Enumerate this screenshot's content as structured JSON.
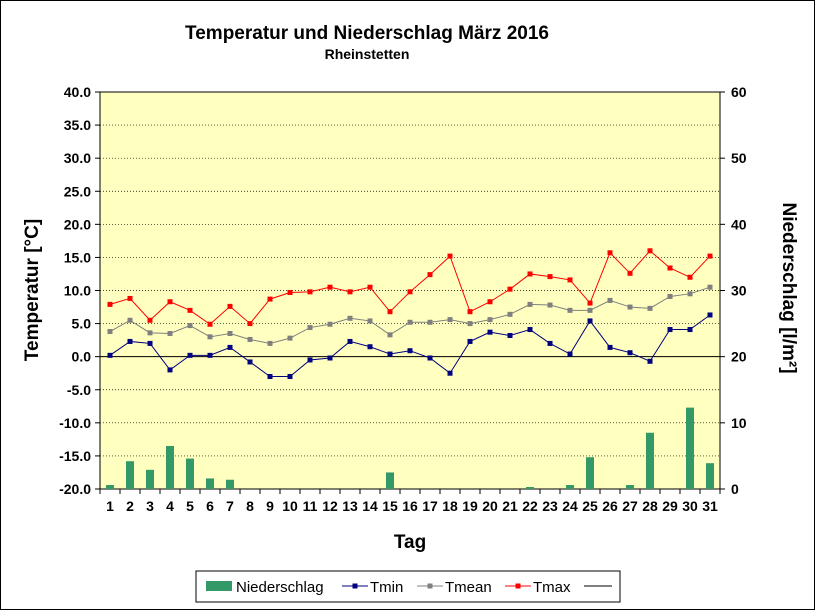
{
  "chart_data": {
    "type": "bar-line-combo",
    "title": "Temperatur und Niederschlag  März 2016",
    "subtitle": "Rheinstetten",
    "xlabel": "Tag",
    "ylabel_left": "Temperatur [°C]",
    "ylabel_right": "Niederschlag [l/m²]",
    "ylim_left": [
      -20,
      40
    ],
    "ylim_right": [
      0,
      60
    ],
    "yticks_left": [
      "40.0",
      "35.0",
      "30.0",
      "25.0",
      "20.0",
      "15.0",
      "10.0",
      "5.0",
      "0.0",
      "-5.0",
      "-10.0",
      "-15.0",
      "-20.0"
    ],
    "yticks_right": [
      "60",
      "50",
      "40",
      "30",
      "20",
      "10",
      "0"
    ],
    "categories": [
      "1",
      "2",
      "3",
      "4",
      "5",
      "6",
      "7",
      "8",
      "9",
      "10",
      "11",
      "12",
      "13",
      "14",
      "15",
      "16",
      "17",
      "18",
      "19",
      "20",
      "21",
      "22",
      "23",
      "24",
      "25",
      "26",
      "27",
      "28",
      "29",
      "30",
      "31"
    ],
    "grid": "horizontal",
    "legend": "bottom",
    "colors": {
      "plot_bg": "#ffffc0",
      "bar": "#339966",
      "tmin": "#000080",
      "tmean": "#808080",
      "tmax": "#ff0000",
      "zero_line": "#000000"
    },
    "bars": {
      "name": "Niederschlag",
      "axis": "right",
      "values": [
        0.6,
        4.2,
        2.9,
        6.5,
        4.6,
        1.6,
        1.4,
        0,
        0,
        0,
        0,
        0,
        0,
        0,
        2.5,
        0,
        0,
        0,
        0,
        0,
        0,
        0.3,
        0,
        0.6,
        4.8,
        0,
        0.6,
        8.5,
        0,
        12.3,
        3.9
      ]
    },
    "series": [
      {
        "name": "Tmin",
        "axis": "left",
        "values": [
          0.2,
          2.3,
          2.0,
          -2.0,
          0.2,
          0.2,
          1.4,
          -0.8,
          -3.0,
          -3.0,
          -0.5,
          -0.2,
          2.3,
          1.5,
          0.4,
          0.9,
          -0.2,
          -2.5,
          2.3,
          3.7,
          3.2,
          4.1,
          2.0,
          0.4,
          5.4,
          1.4,
          0.6,
          -0.7,
          4.1,
          4.1,
          6.3
        ]
      },
      {
        "name": "Tmean",
        "axis": "left",
        "values": [
          3.8,
          5.5,
          3.6,
          3.5,
          4.7,
          3.0,
          3.5,
          2.6,
          2.0,
          2.8,
          4.4,
          4.9,
          5.8,
          5.4,
          3.3,
          5.2,
          5.2,
          5.6,
          5.0,
          5.6,
          6.4,
          7.9,
          7.8,
          7.0,
          7.0,
          8.5,
          7.5,
          7.3,
          9.1,
          9.5,
          10.5
        ]
      },
      {
        "name": "Tmax",
        "axis": "left",
        "values": [
          7.9,
          8.8,
          5.5,
          8.3,
          7.0,
          4.9,
          7.6,
          5.0,
          8.7,
          9.7,
          9.8,
          10.5,
          9.8,
          10.5,
          6.8,
          9.8,
          12.4,
          15.2,
          6.8,
          8.3,
          10.2,
          12.5,
          12.1,
          11.6,
          8.1,
          15.7,
          12.6,
          16.0,
          13.4,
          12.0,
          15.2
        ]
      }
    ]
  }
}
